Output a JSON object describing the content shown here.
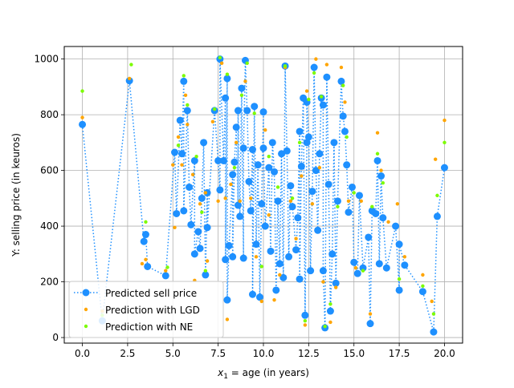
{
  "chart_data": {
    "type": "scatter",
    "title": "",
    "xlabel_prefix": "x",
    "xlabel_sub": "1",
    "xlabel_rest": " = age (in years)",
    "ylabel": "Y: selling price (in keuros)",
    "xlim": [
      -1,
      21
    ],
    "ylim": [
      -20,
      1045
    ],
    "xticks": [
      0.0,
      2.5,
      5.0,
      7.5,
      10.0,
      12.5,
      15.0,
      17.5,
      20.0
    ],
    "xtick_labels": [
      "0.0",
      "2.5",
      "5.0",
      "7.5",
      "10.0",
      "12.5",
      "15.0",
      "17.5",
      "20.0"
    ],
    "yticks": [
      0,
      200,
      400,
      600,
      800,
      1000
    ],
    "ytick_labels": [
      "0",
      "200",
      "400",
      "600",
      "800",
      "1000"
    ],
    "grid": true,
    "legend_position": "bottom-left",
    "series": [
      {
        "name": "Predicted sell price",
        "style": "dotted-line-with-circles",
        "color": "#1e90ff",
        "points": [
          [
            0.0,
            765
          ],
          [
            1.1,
            60
          ],
          [
            2.6,
            922
          ],
          [
            3.4,
            345
          ],
          [
            3.5,
            370
          ],
          [
            3.6,
            255
          ],
          [
            4.6,
            222
          ],
          [
            5.1,
            665
          ],
          [
            5.2,
            445
          ],
          [
            5.4,
            780
          ],
          [
            5.5,
            660
          ],
          [
            5.6,
            920
          ],
          [
            5.6,
            455
          ],
          [
            5.8,
            815
          ],
          [
            5.9,
            540
          ],
          [
            6.0,
            405
          ],
          [
            6.2,
            635
          ],
          [
            6.2,
            300
          ],
          [
            6.4,
            380
          ],
          [
            6.5,
            320
          ],
          [
            6.6,
            500
          ],
          [
            6.7,
            700
          ],
          [
            6.8,
            225
          ],
          [
            6.9,
            520
          ],
          [
            6.9,
            395
          ],
          [
            7.3,
            815
          ],
          [
            7.5,
            635
          ],
          [
            7.6,
            530
          ],
          [
            7.6,
            1000
          ],
          [
            7.8,
            635
          ],
          [
            7.9,
            860
          ],
          [
            7.9,
            280
          ],
          [
            8.0,
            930
          ],
          [
            8.0,
            135
          ],
          [
            8.1,
            330
          ],
          [
            8.3,
            585
          ],
          [
            8.3,
            290
          ],
          [
            8.4,
            630
          ],
          [
            8.5,
            755
          ],
          [
            8.6,
            475
          ],
          [
            8.6,
            815
          ],
          [
            8.7,
            435
          ],
          [
            8.8,
            895
          ],
          [
            8.9,
            285
          ],
          [
            8.9,
            680
          ],
          [
            9.0,
            995
          ],
          [
            9.1,
            815
          ],
          [
            9.2,
            560
          ],
          [
            9.3,
            455
          ],
          [
            9.4,
            675
          ],
          [
            9.4,
            155
          ],
          [
            9.5,
            830
          ],
          [
            9.6,
            335
          ],
          [
            9.7,
            620
          ],
          [
            9.8,
            145
          ],
          [
            9.9,
            480
          ],
          [
            10.0,
            810
          ],
          [
            10.0,
            680
          ],
          [
            10.1,
            400
          ],
          [
            10.3,
            610
          ],
          [
            10.4,
            310
          ],
          [
            10.5,
            700
          ],
          [
            10.6,
            595
          ],
          [
            10.7,
            170
          ],
          [
            10.8,
            490
          ],
          [
            10.9,
            265
          ],
          [
            11.0,
            660
          ],
          [
            11.1,
            215
          ],
          [
            11.2,
            975
          ],
          [
            11.3,
            670
          ],
          [
            11.4,
            290
          ],
          [
            11.5,
            545
          ],
          [
            11.6,
            470
          ],
          [
            11.8,
            315
          ],
          [
            11.9,
            430
          ],
          [
            12.0,
            740
          ],
          [
            12.0,
            210
          ],
          [
            12.1,
            615
          ],
          [
            12.2,
            860
          ],
          [
            12.3,
            80
          ],
          [
            12.4,
            700
          ],
          [
            12.4,
            845
          ],
          [
            12.5,
            720
          ],
          [
            12.6,
            240
          ],
          [
            12.7,
            525
          ],
          [
            12.8,
            970
          ],
          [
            12.9,
            600
          ],
          [
            13.0,
            385
          ],
          [
            13.1,
            660
          ],
          [
            13.2,
            860
          ],
          [
            13.3,
            835
          ],
          [
            13.3,
            240
          ],
          [
            13.4,
            35
          ],
          [
            13.5,
            935
          ],
          [
            13.6,
            550
          ],
          [
            13.7,
            95
          ],
          [
            13.8,
            300
          ],
          [
            13.9,
            700
          ],
          [
            14.0,
            195
          ],
          [
            14.1,
            490
          ],
          [
            14.3,
            920
          ],
          [
            14.4,
            795
          ],
          [
            14.5,
            740
          ],
          [
            14.6,
            620
          ],
          [
            14.7,
            450
          ],
          [
            14.9,
            540
          ],
          [
            15.0,
            270
          ],
          [
            15.2,
            230
          ],
          [
            15.3,
            510
          ],
          [
            15.5,
            250
          ],
          [
            15.8,
            360
          ],
          [
            15.9,
            50
          ],
          [
            16.0,
            455
          ],
          [
            16.2,
            445
          ],
          [
            16.3,
            635
          ],
          [
            16.4,
            265
          ],
          [
            16.5,
            580
          ],
          [
            16.6,
            430
          ],
          [
            16.8,
            250
          ],
          [
            17.3,
            400
          ],
          [
            17.5,
            170
          ],
          [
            17.5,
            335
          ],
          [
            17.8,
            260
          ],
          [
            18.8,
            165
          ],
          [
            19.4,
            20
          ],
          [
            19.6,
            435
          ],
          [
            20.0,
            610
          ]
        ]
      },
      {
        "name": "Prediction with LGD",
        "style": "small-dots",
        "color": "#ffa500",
        "points": [
          [
            0.0,
            790
          ],
          [
            1.1,
            95
          ],
          [
            2.6,
            930
          ],
          [
            3.3,
            265
          ],
          [
            3.5,
            280
          ],
          [
            4.6,
            240
          ],
          [
            5.0,
            620
          ],
          [
            5.1,
            395
          ],
          [
            5.3,
            720
          ],
          [
            5.5,
            620
          ],
          [
            5.7,
            870
          ],
          [
            5.8,
            765
          ],
          [
            6.1,
            585
          ],
          [
            6.2,
            205
          ],
          [
            6.5,
            480
          ],
          [
            6.8,
            520
          ],
          [
            6.9,
            275
          ],
          [
            7.2,
            775
          ],
          [
            7.5,
            490
          ],
          [
            7.7,
            985
          ],
          [
            7.9,
            500
          ],
          [
            8.0,
            65
          ],
          [
            8.2,
            550
          ],
          [
            8.5,
            700
          ],
          [
            8.7,
            490
          ],
          [
            9.0,
            920
          ],
          [
            9.3,
            500
          ],
          [
            9.6,
            290
          ],
          [
            9.9,
            130
          ],
          [
            10.1,
            745
          ],
          [
            10.3,
            440
          ],
          [
            10.6,
            135
          ],
          [
            10.9,
            225
          ],
          [
            11.2,
            970
          ],
          [
            11.5,
            490
          ],
          [
            11.8,
            355
          ],
          [
            12.1,
            580
          ],
          [
            12.3,
            45
          ],
          [
            12.4,
            885
          ],
          [
            12.7,
            480
          ],
          [
            12.9,
            1000
          ],
          [
            13.1,
            610
          ],
          [
            13.3,
            200
          ],
          [
            13.5,
            980
          ],
          [
            13.7,
            55
          ],
          [
            14.0,
            180
          ],
          [
            14.3,
            970
          ],
          [
            14.5,
            845
          ],
          [
            14.7,
            490
          ],
          [
            15.1,
            250
          ],
          [
            15.4,
            490
          ],
          [
            15.9,
            85
          ],
          [
            16.3,
            735
          ],
          [
            16.5,
            600
          ],
          [
            16.9,
            415
          ],
          [
            17.4,
            480
          ],
          [
            17.8,
            290
          ],
          [
            18.8,
            225
          ],
          [
            19.3,
            130
          ],
          [
            19.5,
            640
          ],
          [
            20.0,
            780
          ]
        ]
      },
      {
        "name": "Prediction with NE",
        "style": "small-dots",
        "color": "#7cfc00",
        "points": [
          [
            0.0,
            885
          ],
          [
            1.1,
            80
          ],
          [
            2.7,
            980
          ],
          [
            3.5,
            415
          ],
          [
            4.7,
            252
          ],
          [
            5.3,
            690
          ],
          [
            5.6,
            940
          ],
          [
            5.8,
            835
          ],
          [
            6.3,
            650
          ],
          [
            6.6,
            450
          ],
          [
            6.8,
            240
          ],
          [
            7.3,
            820
          ],
          [
            7.6,
            1005
          ],
          [
            8.0,
            945
          ],
          [
            8.4,
            610
          ],
          [
            8.8,
            870
          ],
          [
            9.1,
            985
          ],
          [
            9.5,
            805
          ],
          [
            9.9,
            255
          ],
          [
            10.3,
            650
          ],
          [
            10.8,
            540
          ],
          [
            11.2,
            975
          ],
          [
            11.6,
            500
          ],
          [
            12.0,
            700
          ],
          [
            12.3,
            60
          ],
          [
            12.5,
            855
          ],
          [
            12.8,
            950
          ],
          [
            13.2,
            865
          ],
          [
            13.4,
            40
          ],
          [
            13.7,
            120
          ],
          [
            14.1,
            470
          ],
          [
            14.4,
            905
          ],
          [
            14.6,
            720
          ],
          [
            15.0,
            520
          ],
          [
            15.5,
            240
          ],
          [
            16.0,
            470
          ],
          [
            16.3,
            660
          ],
          [
            16.6,
            555
          ],
          [
            17.5,
            210
          ],
          [
            18.8,
            185
          ],
          [
            19.4,
            85
          ],
          [
            19.6,
            510
          ],
          [
            20.0,
            700
          ]
        ]
      }
    ]
  }
}
